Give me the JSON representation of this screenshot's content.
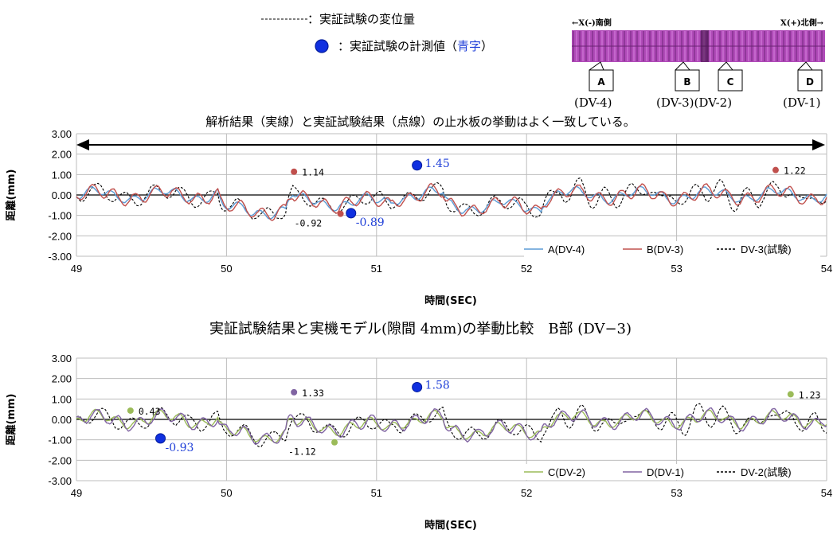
{
  "header": {
    "legend_dashed_text": "：実証試験の変位量",
    "legend_dot_text": "：実証試験の計測値（",
    "legend_dot_blue": "青字",
    "legend_dot_close": "）",
    "photo_left_label": "←X(-)南側",
    "photo_right_label": "X(+)北側→",
    "photo_callouts": [
      "A",
      "B",
      "C",
      "D"
    ],
    "photo_captions": [
      "(DV-4)",
      "(DV-3)(DV-2)",
      "(DV-1)"
    ]
  },
  "colors": {
    "A": "#5b9bd5",
    "B": "#c0504d",
    "C": "#9bbb59",
    "D": "#8064a2",
    "test": "#000000",
    "blue_text": "#1f3fd8",
    "photo": "#b04bb8"
  },
  "chart_data": [
    {
      "type": "line",
      "title": "解析結果（実線）と実証試験結果（点線）の止水板の挙動はよく一致している。",
      "xlabel": "時間(SEC)",
      "ylabel": "距離(mm)",
      "xlim": [
        49,
        54
      ],
      "ylim": [
        -3,
        3
      ],
      "xticks": [
        "49",
        "50",
        "51",
        "52",
        "53",
        "54"
      ],
      "yticks": [
        "3.00",
        "2.00",
        "1.00",
        "0.00",
        "-1.00",
        "-2.00",
        "-3.00"
      ],
      "grid": true,
      "legend": "bottom-right",
      "series": [
        {
          "name": "A(DV-4)",
          "key": "A",
          "style": "solid",
          "seed": 11,
          "amp": 0.25
        },
        {
          "name": "B(DV-3)",
          "key": "B",
          "style": "solid",
          "seed": 23,
          "amp": 0.38
        },
        {
          "name": "DV-3(試験)",
          "key": "test",
          "style": "dashed",
          "seed": 37,
          "amp": 0.4
        }
      ],
      "markers": [
        {
          "x": 50.45,
          "y": 1.14,
          "color": "#c0504d",
          "label": "1.14",
          "blue": false
        },
        {
          "x": 50.76,
          "y": -0.92,
          "color": "#c0504d",
          "label": "-0.92",
          "blue": false
        },
        {
          "x": 50.83,
          "y": -0.89,
          "color": "#1f3fd8",
          "label": "-0.89",
          "blue": true
        },
        {
          "x": 51.27,
          "y": 1.45,
          "color": "#1f3fd8",
          "label": "1.45",
          "blue": true
        },
        {
          "x": 53.66,
          "y": 1.22,
          "color": "#c0504d",
          "label": "1.22",
          "blue": false
        }
      ]
    },
    {
      "type": "line",
      "title": "実証試験結果と実機モデル(隙間 4mm)の挙動比較　B部 (DV−3)",
      "xlabel": "時間(SEC)",
      "ylabel": "距離(mm)",
      "xlim": [
        49,
        54
      ],
      "ylim": [
        -3,
        3
      ],
      "xticks": [
        "49",
        "50",
        "51",
        "52",
        "53",
        "54"
      ],
      "yticks": [
        "3.00",
        "2.00",
        "1.00",
        "0.00",
        "-1.00",
        "-2.00",
        "-3.00"
      ],
      "grid": true,
      "legend": "bottom-right",
      "series": [
        {
          "name": "C(DV-2)",
          "key": "C",
          "style": "solid",
          "seed": 41,
          "amp": 0.28
        },
        {
          "name": "D(DV-1)",
          "key": "D",
          "style": "solid",
          "seed": 53,
          "amp": 0.38
        },
        {
          "name": "DV-2(試験)",
          "key": "test",
          "style": "dashed",
          "seed": 67,
          "amp": 0.42
        }
      ],
      "markers": [
        {
          "x": 49.36,
          "y": 0.43,
          "color": "#9bbb59",
          "label": "0.43",
          "blue": false
        },
        {
          "x": 49.56,
          "y": -0.93,
          "color": "#1f3fd8",
          "label": "-0.93",
          "blue": true
        },
        {
          "x": 50.45,
          "y": 1.33,
          "color": "#8064a2",
          "label": "1.33",
          "blue": false
        },
        {
          "x": 50.72,
          "y": -1.12,
          "color": "#9bbb59",
          "label": "-1.12",
          "blue": false
        },
        {
          "x": 51.27,
          "y": 1.58,
          "color": "#1f3fd8",
          "label": "1.58",
          "blue": true
        },
        {
          "x": 53.76,
          "y": 1.23,
          "color": "#9bbb59",
          "label": "1.23",
          "blue": false
        }
      ]
    }
  ]
}
